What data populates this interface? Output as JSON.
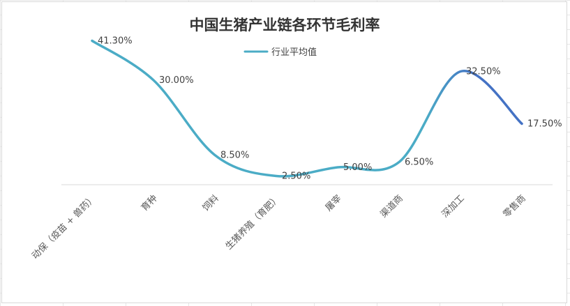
{
  "chart_data": {
    "type": "line",
    "title": "中国生猪产业链各环节毛利率",
    "categories": [
      "动保（疫苗 + 兽药）",
      "育种",
      "饲料",
      "生猪养殖（育肥）",
      "屠宰",
      "渠道商",
      "深加工",
      "零售商"
    ],
    "series": [
      {
        "name": "行业平均值",
        "values": [
          41.3,
          30.0,
          8.5,
          2.5,
          5.0,
          6.5,
          32.5,
          17.5
        ],
        "labels": [
          "41.30%",
          "30.00%",
          "8.50%",
          "2.50%",
          "5.00%",
          "6.50%",
          "32.50%",
          "17.50%"
        ]
      }
    ],
    "smooth": true,
    "legend_position": "top",
    "gridlines": false,
    "ylim": [
      0,
      45
    ],
    "colors": {
      "line": "#4bacc6",
      "line_end": "#4472c4"
    }
  }
}
